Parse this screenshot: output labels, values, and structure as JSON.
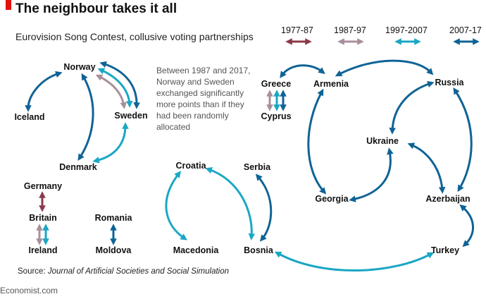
{
  "header": {
    "title": "The neighbour takes it all",
    "subtitle": "Eurovision Song Contest, collusive voting partnerships"
  },
  "legend": [
    {
      "label": "1977-87",
      "color": "#8b3a4a"
    },
    {
      "label": "1987-97",
      "color": "#a98f9c"
    },
    {
      "label": "1997-2007",
      "color": "#1aa7c4"
    },
    {
      "label": "2007-17",
      "color": "#0f6396"
    }
  ],
  "note": "Between 1987 and 2017, Norway and Sweden exchanged significantly more points than if they had been randomly allocated",
  "nodes": {
    "norway": "Norway",
    "iceland": "Iceland",
    "sweden": "Sweden",
    "denmark": "Denmark",
    "germany": "Germany",
    "britain": "Britain",
    "ireland": "Ireland",
    "romania": "Romania",
    "moldova": "Moldova",
    "croatia": "Croatia",
    "macedonia": "Macedonia",
    "serbia": "Serbia",
    "bosnia": "Bosnia",
    "greece": "Greece",
    "cyprus": "Cyprus",
    "armenia": "Armenia",
    "russia": "Russia",
    "ukraine": "Ukraine",
    "georgia": "Georgia",
    "azerbaijan": "Azerbaijan",
    "turkey": "Turkey"
  },
  "source": {
    "prefix": "Source: ",
    "name": "Journal of Artificial Societies and Social Simulation"
  },
  "brand": "Economist.com"
}
